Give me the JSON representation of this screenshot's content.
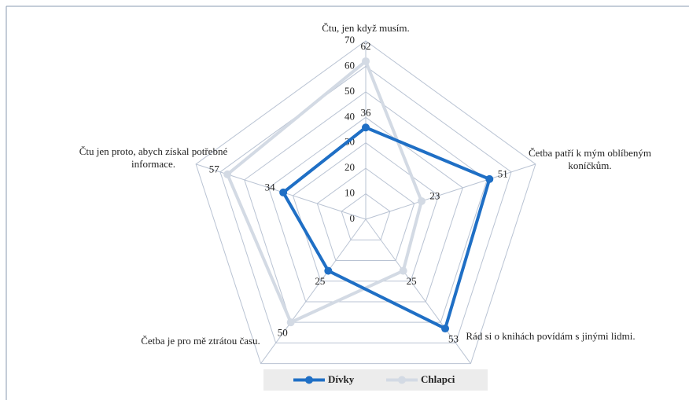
{
  "chart_data": {
    "type": "radar",
    "categories": [
      "Čtu, jen když musím.",
      "Četba patří k mým oblíbeným koníčkům.",
      "Rád si o knihách povídám s jinými lidmi.",
      "Četba je pro mě ztrátou času.",
      "Čtu jen proto, abych získal potřebné informace."
    ],
    "series": [
      {
        "name": "Dívky",
        "color": "#1f6fc5",
        "values": [
          36,
          51,
          53,
          25,
          34
        ]
      },
      {
        "name": "Chlapci",
        "color": "#d3dae4",
        "values": [
          62,
          23,
          25,
          50,
          57
        ]
      }
    ],
    "ylim": [
      0,
      70
    ],
    "yticks": [
      0,
      10,
      20,
      30,
      40,
      50,
      60,
      70
    ],
    "grid": true,
    "legend": "bottom"
  }
}
